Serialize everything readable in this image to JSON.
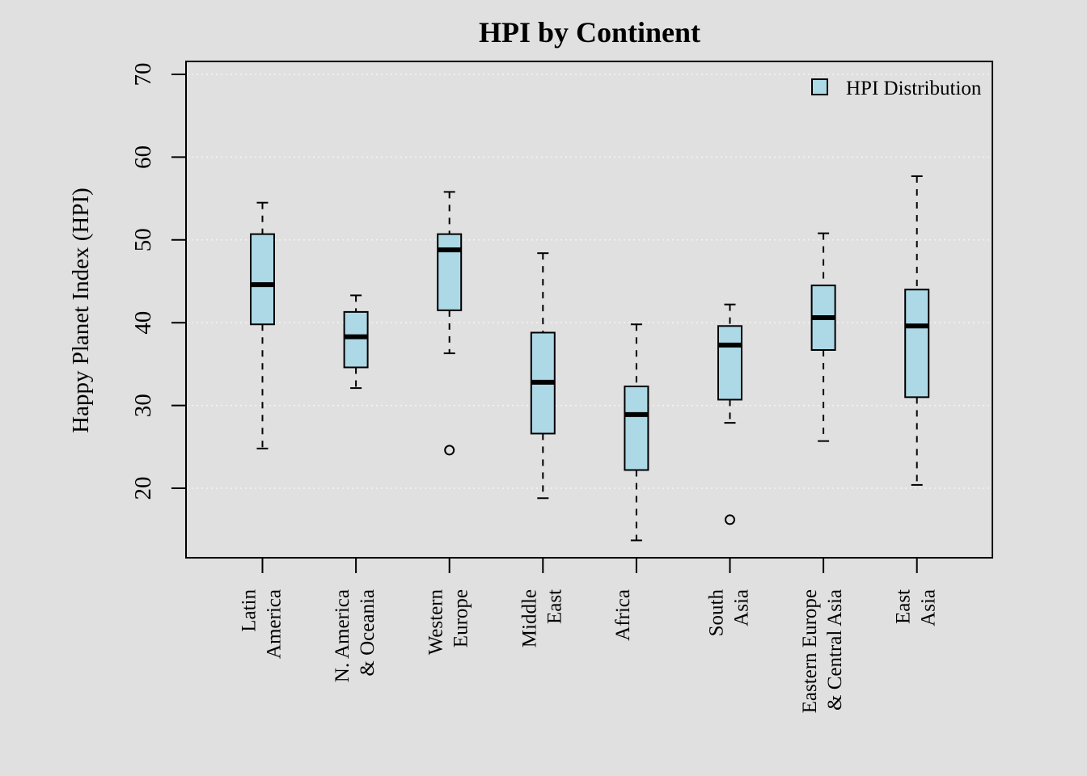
{
  "chart_data": {
    "type": "box",
    "title": "HPI by Continent",
    "xlabel": "",
    "ylabel": "Happy Planet Index (HPI)",
    "ylim": [
      11.5,
      72
    ],
    "yticks": [
      20,
      30,
      40,
      50,
      60,
      70
    ],
    "grid": "horizontal dotted",
    "legend": {
      "position": "top-right",
      "label": "HPI Distribution"
    },
    "colors": {
      "box_fill": "#add8e6",
      "background": "#e0e0e0",
      "line": "#000000",
      "grid": "#f4f4f4"
    },
    "categories": [
      {
        "lines": [
          "Latin",
          "America"
        ],
        "min": 24.8,
        "q1": 39.8,
        "median": 44.6,
        "q3": 50.7,
        "max": 54.5,
        "outliers": []
      },
      {
        "lines": [
          "N. America",
          "& Oceania"
        ],
        "min": 32.1,
        "q1": 34.6,
        "median": 38.3,
        "q3": 41.3,
        "max": 43.3,
        "outliers": []
      },
      {
        "lines": [
          "Western",
          "Europe"
        ],
        "min": 36.3,
        "q1": 41.5,
        "median": 48.8,
        "q3": 50.7,
        "max": 55.8,
        "outliers": [
          24.6
        ]
      },
      {
        "lines": [
          "Middle",
          "East"
        ],
        "min": 18.8,
        "q1": 26.6,
        "median": 32.8,
        "q3": 38.8,
        "max": 48.4,
        "outliers": []
      },
      {
        "lines": [
          "Africa",
          ""
        ],
        "min": 13.7,
        "q1": 22.2,
        "median": 28.9,
        "q3": 32.3,
        "max": 39.8,
        "outliers": []
      },
      {
        "lines": [
          "South",
          "Asia"
        ],
        "min": 27.9,
        "q1": 30.7,
        "median": 37.3,
        "q3": 39.6,
        "max": 42.2,
        "outliers": [
          16.2
        ]
      },
      {
        "lines": [
          "Eastern Europe",
          "& Central Asia"
        ],
        "min": 25.7,
        "q1": 36.7,
        "median": 40.6,
        "q3": 44.5,
        "max": 50.8,
        "outliers": []
      },
      {
        "lines": [
          "East",
          "Asia"
        ],
        "min": 20.4,
        "q1": 31.0,
        "median": 39.6,
        "q3": 44.0,
        "max": 57.7,
        "outliers": []
      }
    ]
  }
}
